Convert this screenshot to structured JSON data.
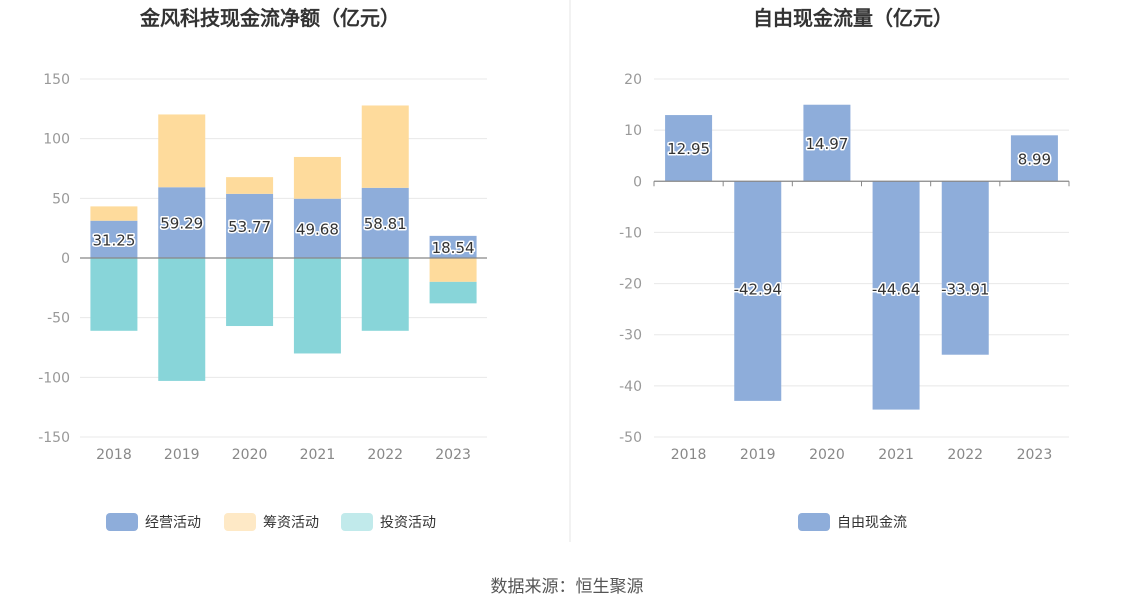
{
  "source": "数据来源：恒生聚源",
  "colors": {
    "operating": "#8eadda",
    "financing": "#fedb9c",
    "investing": "#88d5d9",
    "investing_legend": "#c1eaeb",
    "financing_legend": "#fee9c6",
    "fcf": "#8eadda"
  },
  "chart_data": [
    {
      "type": "bar",
      "stacked": true,
      "title": "金风科技现金流净额（亿元）",
      "categories": [
        "2018",
        "2019",
        "2020",
        "2021",
        "2022",
        "2023"
      ],
      "series": [
        {
          "name": "经营活动",
          "values": [
            31.25,
            59.29,
            53.77,
            49.68,
            58.81,
            18.54
          ],
          "labels": [
            "31.25",
            "59.29",
            "53.77",
            "49.68",
            "58.81",
            "18.54"
          ]
        },
        {
          "name": "筹资活动",
          "values": [
            12,
            61,
            14,
            35,
            69,
            -20
          ]
        },
        {
          "name": "投资活动",
          "values": [
            -61,
            -103,
            -57,
            -80,
            -61,
            -18
          ]
        }
      ],
      "yticks": [
        150,
        100,
        50,
        0,
        -50,
        -100,
        -150
      ],
      "ylim": [
        -150,
        150
      ],
      "legend": "bottom-center"
    },
    {
      "type": "bar",
      "title": "自由现金流量（亿元）",
      "categories": [
        "2018",
        "2019",
        "2020",
        "2021",
        "2022",
        "2023"
      ],
      "series": [
        {
          "name": "自由现金流",
          "values": [
            12.95,
            -42.94,
            14.97,
            -44.64,
            -33.91,
            8.99
          ],
          "labels": [
            "12.95",
            "-42.94",
            "14.97",
            "-44.64",
            "-33.91",
            "8.99"
          ]
        }
      ],
      "yticks": [
        20,
        10,
        0,
        -10,
        -20,
        -30,
        -40,
        -50
      ],
      "ylim": [
        -50,
        20
      ],
      "legend": "bottom-center"
    }
  ]
}
